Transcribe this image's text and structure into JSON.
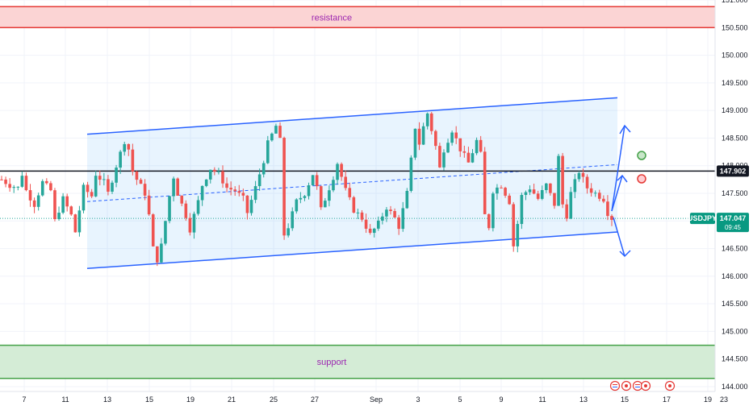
{
  "chart_data": {
    "type": "candlestick",
    "symbol": "USDJPY",
    "last_price": "147.047",
    "countdown": "09:45",
    "level_line_label": "147.902",
    "level_line_value": 147.902,
    "y_axis": {
      "ticks": [
        "151.000",
        "150.500",
        "150.000",
        "149.500",
        "149.000",
        "148.500",
        "148.000",
        "147.500",
        "147.000",
        "146.500",
        "146.000",
        "145.500",
        "145.000",
        "144.500",
        "144.000"
      ],
      "range": [
        144.0,
        151.0
      ]
    },
    "x_axis": {
      "ticks": [
        "7",
        "11",
        "13",
        "15",
        "19",
        "21",
        "25",
        "27",
        "Sep",
        "3",
        "5",
        "9",
        "11",
        "13",
        "15",
        "17",
        "19",
        "23"
      ]
    },
    "zones": [
      {
        "name": "resistance",
        "label": "resistance",
        "from": 150.5,
        "to": 150.88,
        "fill": "#fbd4d4",
        "line": "#e53935"
      },
      {
        "name": "support",
        "label": "support",
        "from": 144.15,
        "to": 144.75,
        "fill": "#d4ecd6",
        "line": "#43a047"
      }
    ],
    "channel": {
      "upper": [
        {
          "x": "12",
          "y": 148.57
        },
        {
          "x": "16",
          "y": 149.23
        }
      ],
      "lower": [
        {
          "x": "12",
          "y": 146.14
        },
        {
          "x": "16",
          "y": 146.8
        }
      ],
      "mid": [
        {
          "x": "12",
          "y": 147.35
        },
        {
          "x": "16",
          "y": 148.02
        }
      ]
    },
    "price_path": [
      [
        0,
        147.75
      ],
      [
        2,
        147.65
      ],
      [
        4,
        147.6
      ],
      [
        5,
        147.85
      ],
      [
        6,
        147.55
      ],
      [
        8,
        147.3
      ],
      [
        10,
        147.7
      ],
      [
        12,
        147.55
      ],
      [
        13,
        147.0
      ],
      [
        15,
        147.4
      ],
      [
        17,
        147.1
      ],
      [
        18,
        146.8
      ],
      [
        20,
        147.6
      ],
      [
        22,
        147.45
      ],
      [
        23,
        147.85
      ],
      [
        25,
        147.7
      ],
      [
        26,
        147.5
      ],
      [
        28,
        148.0
      ],
      [
        30,
        148.45
      ],
      [
        31,
        148.3
      ],
      [
        32,
        147.9
      ],
      [
        33,
        147.75
      ],
      [
        35,
        147.5
      ],
      [
        36,
        147.1
      ],
      [
        37,
        146.5
      ],
      [
        38,
        146.3
      ],
      [
        39,
        146.55
      ],
      [
        41,
        147.45
      ],
      [
        42,
        147.8
      ],
      [
        43,
        147.5
      ],
      [
        45,
        147.1
      ],
      [
        46,
        146.85
      ],
      [
        48,
        147.35
      ],
      [
        49,
        147.65
      ],
      [
        51,
        147.95
      ],
      [
        53,
        147.85
      ],
      [
        55,
        147.6
      ],
      [
        57,
        147.55
      ],
      [
        59,
        147.4
      ],
      [
        60,
        147.15
      ],
      [
        62,
        147.6
      ],
      [
        64,
        148.1
      ],
      [
        65,
        148.4
      ],
      [
        67,
        148.72
      ],
      [
        68,
        148.45
      ],
      [
        69,
        146.75
      ],
      [
        70,
        146.9
      ],
      [
        72,
        147.35
      ],
      [
        74,
        147.5
      ],
      [
        76,
        147.85
      ],
      [
        77,
        147.6
      ],
      [
        78,
        147.2
      ],
      [
        79,
        147.4
      ],
      [
        81,
        147.8
      ],
      [
        82,
        148.05
      ],
      [
        84,
        147.55
      ],
      [
        86,
        147.2
      ],
      [
        88,
        147.05
      ],
      [
        90,
        146.75
      ],
      [
        92,
        146.95
      ],
      [
        94,
        147.25
      ],
      [
        96,
        147.05
      ],
      [
        97,
        146.9
      ],
      [
        99,
        147.5
      ],
      [
        100,
        148.1
      ],
      [
        101,
        148.7
      ],
      [
        102,
        148.4
      ],
      [
        103,
        148.7
      ],
      [
        104,
        148.95
      ],
      [
        106,
        148.35
      ],
      [
        107,
        147.95
      ],
      [
        108,
        148.3
      ],
      [
        110,
        148.65
      ],
      [
        112,
        148.3
      ],
      [
        114,
        148.05
      ],
      [
        116,
        148.45
      ],
      [
        117,
        148.2
      ],
      [
        118,
        147.1
      ],
      [
        119,
        146.9
      ],
      [
        120,
        147.55
      ],
      [
        122,
        147.65
      ],
      [
        124,
        147.35
      ],
      [
        125,
        146.55
      ],
      [
        126,
        146.95
      ],
      [
        127,
        147.45
      ],
      [
        129,
        147.6
      ],
      [
        131,
        147.4
      ],
      [
        133,
        147.65
      ],
      [
        135,
        147.3
      ],
      [
        136,
        148.15
      ],
      [
        137,
        147.3
      ],
      [
        138,
        147.1
      ],
      [
        139,
        147.5
      ],
      [
        141,
        147.9
      ],
      [
        143,
        147.6
      ],
      [
        145,
        147.5
      ],
      [
        147,
        147.4
      ],
      [
        148,
        147.15
      ],
      [
        149,
        147.05
      ]
    ]
  },
  "ui": {
    "event_icons": [
      "us-flag-icon",
      "event-marker-icon",
      "us-flag-icon",
      "event-marker-icon"
    ]
  }
}
